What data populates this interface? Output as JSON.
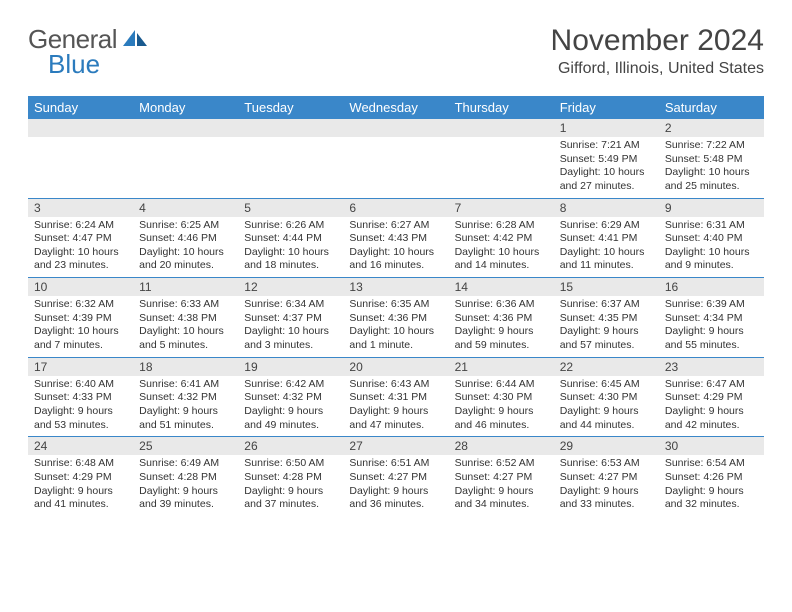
{
  "logo": {
    "text1": "General",
    "text2": "Blue"
  },
  "title": "November 2024",
  "location": "Gifford, Illinois, United States",
  "day_names": [
    "Sunday",
    "Monday",
    "Tuesday",
    "Wednesday",
    "Thursday",
    "Friday",
    "Saturday"
  ],
  "colors": {
    "header_bg": "#3a87c9",
    "header_text": "#ffffff",
    "daynum_bg": "#e9e9e9",
    "week_border": "#3a87c9",
    "logo_blue": "#2b7bbd"
  },
  "weeks": [
    [
      {
        "day": "",
        "sunrise": "",
        "sunset": "",
        "daylight1": "",
        "daylight2": ""
      },
      {
        "day": "",
        "sunrise": "",
        "sunset": "",
        "daylight1": "",
        "daylight2": ""
      },
      {
        "day": "",
        "sunrise": "",
        "sunset": "",
        "daylight1": "",
        "daylight2": ""
      },
      {
        "day": "",
        "sunrise": "",
        "sunset": "",
        "daylight1": "",
        "daylight2": ""
      },
      {
        "day": "",
        "sunrise": "",
        "sunset": "",
        "daylight1": "",
        "daylight2": ""
      },
      {
        "day": "1",
        "sunrise": "Sunrise: 7:21 AM",
        "sunset": "Sunset: 5:49 PM",
        "daylight1": "Daylight: 10 hours",
        "daylight2": "and 27 minutes."
      },
      {
        "day": "2",
        "sunrise": "Sunrise: 7:22 AM",
        "sunset": "Sunset: 5:48 PM",
        "daylight1": "Daylight: 10 hours",
        "daylight2": "and 25 minutes."
      }
    ],
    [
      {
        "day": "3",
        "sunrise": "Sunrise: 6:24 AM",
        "sunset": "Sunset: 4:47 PM",
        "daylight1": "Daylight: 10 hours",
        "daylight2": "and 23 minutes."
      },
      {
        "day": "4",
        "sunrise": "Sunrise: 6:25 AM",
        "sunset": "Sunset: 4:46 PM",
        "daylight1": "Daylight: 10 hours",
        "daylight2": "and 20 minutes."
      },
      {
        "day": "5",
        "sunrise": "Sunrise: 6:26 AM",
        "sunset": "Sunset: 4:44 PM",
        "daylight1": "Daylight: 10 hours",
        "daylight2": "and 18 minutes."
      },
      {
        "day": "6",
        "sunrise": "Sunrise: 6:27 AM",
        "sunset": "Sunset: 4:43 PM",
        "daylight1": "Daylight: 10 hours",
        "daylight2": "and 16 minutes."
      },
      {
        "day": "7",
        "sunrise": "Sunrise: 6:28 AM",
        "sunset": "Sunset: 4:42 PM",
        "daylight1": "Daylight: 10 hours",
        "daylight2": "and 14 minutes."
      },
      {
        "day": "8",
        "sunrise": "Sunrise: 6:29 AM",
        "sunset": "Sunset: 4:41 PM",
        "daylight1": "Daylight: 10 hours",
        "daylight2": "and 11 minutes."
      },
      {
        "day": "9",
        "sunrise": "Sunrise: 6:31 AM",
        "sunset": "Sunset: 4:40 PM",
        "daylight1": "Daylight: 10 hours",
        "daylight2": "and 9 minutes."
      }
    ],
    [
      {
        "day": "10",
        "sunrise": "Sunrise: 6:32 AM",
        "sunset": "Sunset: 4:39 PM",
        "daylight1": "Daylight: 10 hours",
        "daylight2": "and 7 minutes."
      },
      {
        "day": "11",
        "sunrise": "Sunrise: 6:33 AM",
        "sunset": "Sunset: 4:38 PM",
        "daylight1": "Daylight: 10 hours",
        "daylight2": "and 5 minutes."
      },
      {
        "day": "12",
        "sunrise": "Sunrise: 6:34 AM",
        "sunset": "Sunset: 4:37 PM",
        "daylight1": "Daylight: 10 hours",
        "daylight2": "and 3 minutes."
      },
      {
        "day": "13",
        "sunrise": "Sunrise: 6:35 AM",
        "sunset": "Sunset: 4:36 PM",
        "daylight1": "Daylight: 10 hours",
        "daylight2": "and 1 minute."
      },
      {
        "day": "14",
        "sunrise": "Sunrise: 6:36 AM",
        "sunset": "Sunset: 4:36 PM",
        "daylight1": "Daylight: 9 hours",
        "daylight2": "and 59 minutes."
      },
      {
        "day": "15",
        "sunrise": "Sunrise: 6:37 AM",
        "sunset": "Sunset: 4:35 PM",
        "daylight1": "Daylight: 9 hours",
        "daylight2": "and 57 minutes."
      },
      {
        "day": "16",
        "sunrise": "Sunrise: 6:39 AM",
        "sunset": "Sunset: 4:34 PM",
        "daylight1": "Daylight: 9 hours",
        "daylight2": "and 55 minutes."
      }
    ],
    [
      {
        "day": "17",
        "sunrise": "Sunrise: 6:40 AM",
        "sunset": "Sunset: 4:33 PM",
        "daylight1": "Daylight: 9 hours",
        "daylight2": "and 53 minutes."
      },
      {
        "day": "18",
        "sunrise": "Sunrise: 6:41 AM",
        "sunset": "Sunset: 4:32 PM",
        "daylight1": "Daylight: 9 hours",
        "daylight2": "and 51 minutes."
      },
      {
        "day": "19",
        "sunrise": "Sunrise: 6:42 AM",
        "sunset": "Sunset: 4:32 PM",
        "daylight1": "Daylight: 9 hours",
        "daylight2": "and 49 minutes."
      },
      {
        "day": "20",
        "sunrise": "Sunrise: 6:43 AM",
        "sunset": "Sunset: 4:31 PM",
        "daylight1": "Daylight: 9 hours",
        "daylight2": "and 47 minutes."
      },
      {
        "day": "21",
        "sunrise": "Sunrise: 6:44 AM",
        "sunset": "Sunset: 4:30 PM",
        "daylight1": "Daylight: 9 hours",
        "daylight2": "and 46 minutes."
      },
      {
        "day": "22",
        "sunrise": "Sunrise: 6:45 AM",
        "sunset": "Sunset: 4:30 PM",
        "daylight1": "Daylight: 9 hours",
        "daylight2": "and 44 minutes."
      },
      {
        "day": "23",
        "sunrise": "Sunrise: 6:47 AM",
        "sunset": "Sunset: 4:29 PM",
        "daylight1": "Daylight: 9 hours",
        "daylight2": "and 42 minutes."
      }
    ],
    [
      {
        "day": "24",
        "sunrise": "Sunrise: 6:48 AM",
        "sunset": "Sunset: 4:29 PM",
        "daylight1": "Daylight: 9 hours",
        "daylight2": "and 41 minutes."
      },
      {
        "day": "25",
        "sunrise": "Sunrise: 6:49 AM",
        "sunset": "Sunset: 4:28 PM",
        "daylight1": "Daylight: 9 hours",
        "daylight2": "and 39 minutes."
      },
      {
        "day": "26",
        "sunrise": "Sunrise: 6:50 AM",
        "sunset": "Sunset: 4:28 PM",
        "daylight1": "Daylight: 9 hours",
        "daylight2": "and 37 minutes."
      },
      {
        "day": "27",
        "sunrise": "Sunrise: 6:51 AM",
        "sunset": "Sunset: 4:27 PM",
        "daylight1": "Daylight: 9 hours",
        "daylight2": "and 36 minutes."
      },
      {
        "day": "28",
        "sunrise": "Sunrise: 6:52 AM",
        "sunset": "Sunset: 4:27 PM",
        "daylight1": "Daylight: 9 hours",
        "daylight2": "and 34 minutes."
      },
      {
        "day": "29",
        "sunrise": "Sunrise: 6:53 AM",
        "sunset": "Sunset: 4:27 PM",
        "daylight1": "Daylight: 9 hours",
        "daylight2": "and 33 minutes."
      },
      {
        "day": "30",
        "sunrise": "Sunrise: 6:54 AM",
        "sunset": "Sunset: 4:26 PM",
        "daylight1": "Daylight: 9 hours",
        "daylight2": "and 32 minutes."
      }
    ]
  ]
}
